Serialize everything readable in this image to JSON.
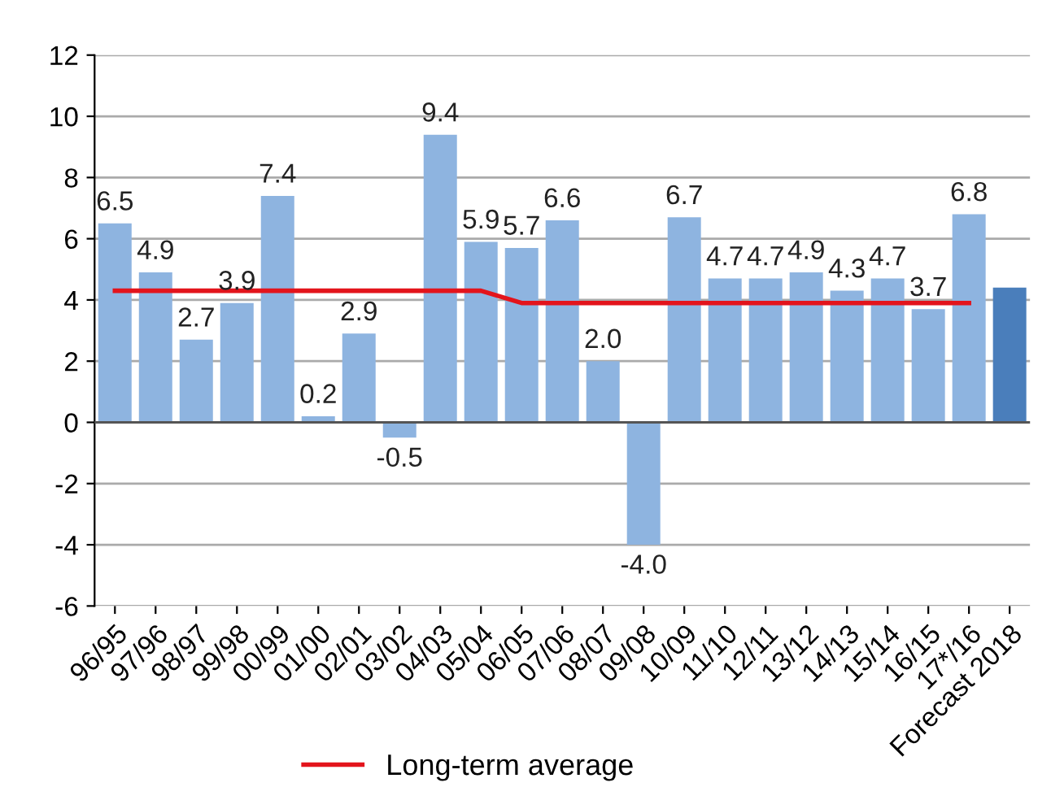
{
  "chart_data": {
    "type": "bar",
    "categories": [
      "96/95",
      "97/96",
      "98/97",
      "99/98",
      "00/99",
      "01/00",
      "02/01",
      "03/02",
      "04/03",
      "05/04",
      "06/05",
      "07/06",
      "08/07",
      "09/08",
      "10/09",
      "11/10",
      "12/11",
      "13/12",
      "14/13",
      "15/14",
      "16/15",
      "17*/16",
      "Forecast 2018"
    ],
    "series": [
      {
        "values": [
          6.5,
          4.9,
          2.7,
          3.9,
          7.4,
          0.2,
          2.9,
          -0.5,
          9.4,
          5.9,
          5.7,
          6.6,
          2.0,
          -4.0,
          6.7,
          4.7,
          4.7,
          4.9,
          4.3,
          4.7,
          3.7,
          6.8,
          4.4
        ],
        "colors": [
          "#8eb4e0",
          "#8eb4e0",
          "#8eb4e0",
          "#8eb4e0",
          "#8eb4e0",
          "#8eb4e0",
          "#8eb4e0",
          "#8eb4e0",
          "#8eb4e0",
          "#8eb4e0",
          "#8eb4e0",
          "#8eb4e0",
          "#8eb4e0",
          "#8eb4e0",
          "#8eb4e0",
          "#8eb4e0",
          "#8eb4e0",
          "#8eb4e0",
          "#8eb4e0",
          "#8eb4e0",
          "#8eb4e0",
          "#8eb4e0",
          "#4a7ebb"
        ],
        "value_labels": [
          "6.5",
          "4.9",
          "2.7",
          "3.9",
          "7.4",
          "0.2",
          "2.9",
          "-0.5",
          "9.4",
          "5.9",
          "5.7",
          "6.6",
          "2.0",
          "-4.0",
          "6.7",
          "4.7",
          "4.7",
          "4.9",
          "4.3",
          "4.7",
          "3.7",
          "6.8",
          null
        ]
      },
      {
        "type": "line",
        "name": "Long-term average",
        "color": "#e3141c",
        "values": [
          4.3,
          4.3,
          4.3,
          4.3,
          4.3,
          4.3,
          4.3,
          4.3,
          4.3,
          4.3,
          3.9,
          3.9,
          3.9,
          3.9,
          3.9,
          3.9,
          3.9,
          3.9,
          3.9,
          3.9,
          3.9,
          3.9,
          null
        ]
      }
    ],
    "ylim": [
      -6,
      12
    ],
    "yticks": [
      -6,
      -4,
      -2,
      0,
      2,
      4,
      6,
      8,
      10,
      12
    ],
    "grid": "y",
    "legend": "bottom"
  }
}
